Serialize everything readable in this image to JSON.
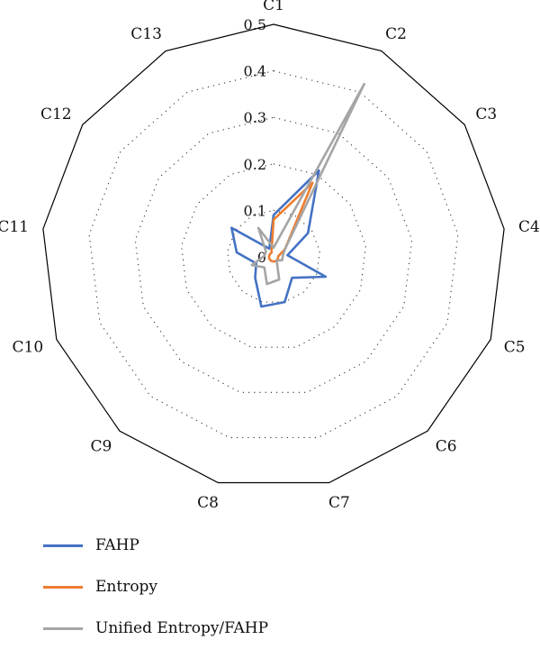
{
  "chart_data": {
    "type": "radar",
    "categories": [
      "C1",
      "C2",
      "C3",
      "C4",
      "C5",
      "C6",
      "C7",
      "C8",
      "C9",
      "C10",
      "C11",
      "C12",
      "C13"
    ],
    "ticks": [
      "0",
      "0.1",
      "0.2",
      "0.3",
      "0.4",
      "0.5"
    ],
    "rmax": 0.5,
    "grid_dotted": true,
    "legend_position": "bottom-left",
    "series": [
      {
        "name": "FAHP",
        "color": "#4472C4",
        "values": [
          0.09,
          0.21,
          0.09,
          0.03,
          0.12,
          0.06,
          0.1,
          0.11,
          0.06,
          0.04,
          0.08,
          0.11,
          0.02
        ]
      },
      {
        "name": "Entropy",
        "color": "#ED7D31",
        "values": [
          0.08,
          0.18,
          0.03,
          0.01,
          0.01,
          0.01,
          0.01,
          0.01,
          0.01,
          0.01,
          0.01,
          0.01,
          0.01
        ]
      },
      {
        "name": "Unified Entropy/FAHP",
        "color": "#A5A5A5",
        "values": [
          0.02,
          0.42,
          0.03,
          0.02,
          0.02,
          0.01,
          0.05,
          0.06,
          0.03,
          0.05,
          0.02,
          0.02,
          0.07
        ]
      }
    ]
  }
}
